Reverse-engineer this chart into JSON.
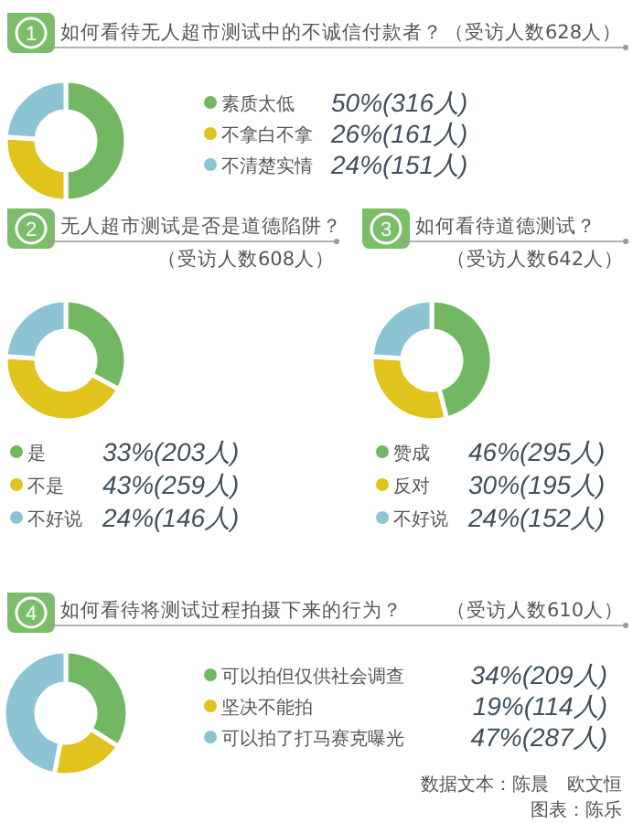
{
  "chart_data": [
    {
      "type": "donut",
      "title": "如何看待无人超市测试中的不诚信付款者？",
      "subtitle": "（受访人数628人）",
      "categories": [
        "素质太低",
        "不拿白不拿",
        "不清楚实情"
      ],
      "values": [
        50,
        26,
        24
      ],
      "colors": [
        "#72b863",
        "#e0c31c",
        "#8dc4d3"
      ],
      "value_labels": [
        "50%(316人)",
        "26%(161人)",
        "24%(151人)"
      ],
      "legend": "right",
      "annotations": [
        "1"
      ]
    },
    {
      "type": "donut",
      "title": "无人超市测试是否是道德陷阱？",
      "subtitle": "（受访人数608人）",
      "categories": [
        "是",
        "不是",
        "不好说"
      ],
      "values": [
        33,
        43,
        24
      ],
      "colors": [
        "#72b863",
        "#e0c31c",
        "#8dc4d3"
      ],
      "value_labels": [
        "33%(203人)",
        "43%(259人)",
        "24%(146人)"
      ],
      "legend": "bottom",
      "annotations": [
        "2"
      ]
    },
    {
      "type": "donut",
      "title": "如何看待道德测试？",
      "subtitle": "（受访人数642人）",
      "categories": [
        "赞成",
        "反对",
        "不好说"
      ],
      "values": [
        46,
        30,
        24
      ],
      "colors": [
        "#72b863",
        "#e0c31c",
        "#8dc4d3"
      ],
      "value_labels": [
        "46%(295人)",
        "30%(195人)",
        "24%(152人)"
      ],
      "legend": "bottom",
      "annotations": [
        "3"
      ]
    },
    {
      "type": "donut",
      "title": "如何看待将测试过程拍摄下来的行为？",
      "subtitle": "（受访人数610人）",
      "categories": [
        "可以拍但仅供社会调查",
        "坚决不能拍",
        "可以拍了打马赛克曝光"
      ],
      "values": [
        34,
        19,
        47
      ],
      "colors": [
        "#72b863",
        "#e0c31c",
        "#8dc4d3"
      ],
      "value_labels": [
        "34%(209人)",
        "19%(114人)",
        "47%(287人)"
      ],
      "legend": "right",
      "annotations": [
        "4",
        "数据文本：陈晨　欧文恒",
        "图表：陈乐"
      ]
    }
  ]
}
